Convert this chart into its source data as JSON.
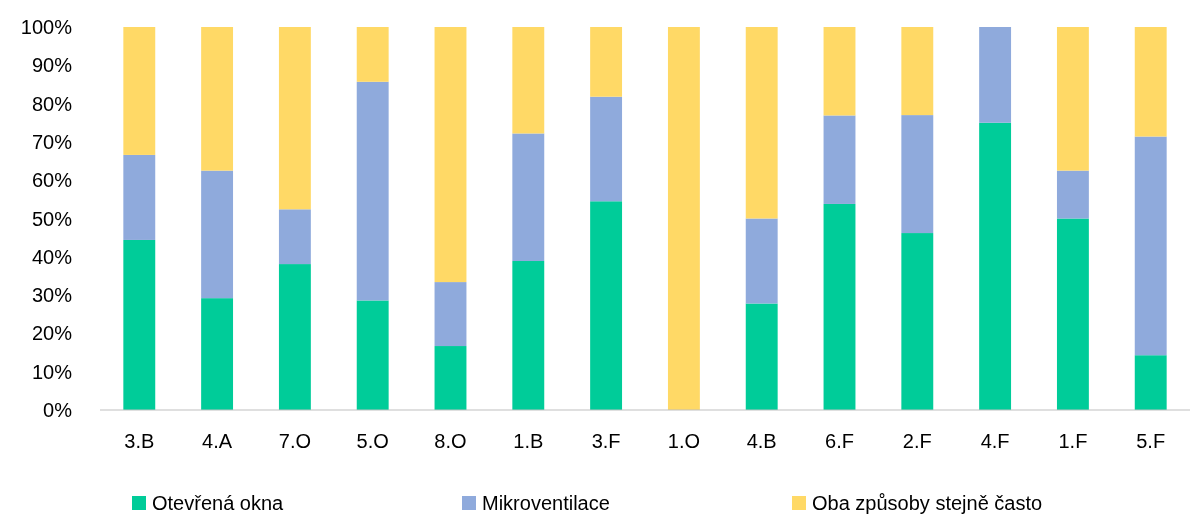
{
  "chart_data": {
    "type": "bar",
    "stacked": true,
    "categories": [
      "3.B",
      "4.A",
      "7.O",
      "5.O",
      "8.O",
      "1.B",
      "3.F",
      "1.O",
      "4.B",
      "6.F",
      "2.F",
      "4.F",
      "1.F",
      "5.F"
    ],
    "series": [
      {
        "name": "Otevřená okna",
        "color": "#00cc99",
        "values": [
          44.4,
          29.2,
          38.1,
          28.6,
          16.7,
          38.9,
          54.5,
          0,
          27.8,
          53.8,
          46.2,
          75,
          50,
          14.3
        ]
      },
      {
        "name": "Mikroventilace",
        "color": "#8faadc",
        "values": [
          22.2,
          33.3,
          14.3,
          57.1,
          16.7,
          33.3,
          27.3,
          0,
          22.2,
          23.1,
          30.8,
          25,
          12.5,
          57.1
        ]
      },
      {
        "name": "Oba způsoby stejně často",
        "color": "#ffd966",
        "values": [
          33.4,
          37.5,
          47.6,
          14.3,
          66.6,
          27.8,
          18.2,
          100,
          50,
          23.1,
          23,
          0,
          37.5,
          28.6
        ]
      }
    ],
    "ylim": [
      0,
      100
    ],
    "yticks": [
      {
        "value": 0,
        "label": "0%"
      },
      {
        "value": 10,
        "label": "10%"
      },
      {
        "value": 20,
        "label": "20%"
      },
      {
        "value": 30,
        "label": "30%"
      },
      {
        "value": 40,
        "label": "40%"
      },
      {
        "value": 50,
        "label": "50%"
      },
      {
        "value": 60,
        "label": "60%"
      },
      {
        "value": 70,
        "label": "70%"
      },
      {
        "value": 80,
        "label": "80%"
      },
      {
        "value": 90,
        "label": "90%"
      },
      {
        "value": 100,
        "label": "100%"
      }
    ],
    "grid": false,
    "legend": "bottom"
  }
}
